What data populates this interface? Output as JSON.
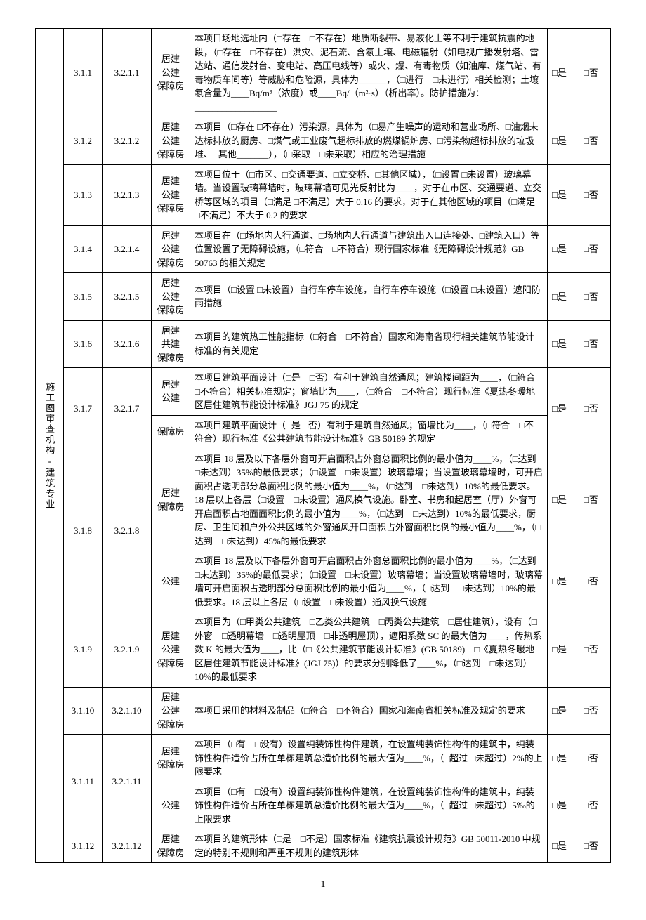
{
  "page_number": "1",
  "category_label": "施工图审查机构-建筑专业",
  "yes_label": "□是",
  "no_label": "□否",
  "type_labels": {
    "ju_gong_bao": "居建\n公建\n保障房",
    "ju_gong": "居建\n公建",
    "ju_bao": "居建\n保障房",
    "ju_gong2_bao": "居建\n共建\n保障房",
    "bao": "保障房",
    "gong": "公建"
  },
  "rows": [
    {
      "n1": "3.1.1",
      "n2": "3.2.1.1",
      "type": "ju_gong_bao",
      "desc": "本项目场地选址内（□存在　□不存在）地质断裂带、易液化土等不利于建筑抗震的地段，（□存在　□不存在）洪灾、泥石流、含氡土壤、电磁辐射（如电视广播发射塔、雷达站、通信发射台、变电站、高压电线等）或火、爆、有毒物质（如油库、煤气站、有毒物质车间等）等威胁和危险源，具体为______，（□进行　□未进行）相关检测；土壤氡含量为____Bq/m³（浓度）或____Bq/（m²·s）（析出率）。防护措施为：__________________"
    },
    {
      "n1": "3.1.2",
      "n2": "3.2.1.2",
      "type": "ju_gong_bao",
      "desc": "本项目（□存在 □不存在）污染源，具体为（□易产生噪声的运动和营业场所、□油烟未达标排放的厨房、□煤气或工业废气超标排放的燃煤锅炉房、□污染物超标排放的垃圾堆、□其他_______），（□采取　□未采取）相应的治理措施"
    },
    {
      "n1": "3.1.3",
      "n2": "3.2.1.3",
      "type": "ju_gong_bao",
      "desc": "本项目位于（□市区、□交通要道、□立交桥、□其他区域），（□设置 □未设置）玻璃幕墙。当设置玻璃幕墙时，玻璃幕墙可见光反射比为____，对于在市区、交通要道、立交桥等区域的项目（□满足 □不满足）大于 0.16 的要求，对于在其他区域的项目（□满足 □不满足）不大于 0.2 的要求"
    },
    {
      "n1": "3.1.4",
      "n2": "3.2.1.4",
      "type": "ju_gong_bao",
      "desc": "本项目在（□场地内人行通道、□场地内人行通道与建筑出入口连接处、□建筑入口）等位置设置了无障碍设施，（□符合　□不符合）现行国家标准《无障碍设计规范》GB 50763 的相关规定"
    },
    {
      "n1": "3.1.5",
      "n2": "3.2.1.5",
      "type": "ju_gong_bao",
      "desc": "本项目（□设置 □未设置）自行车停车设施，自行车停车设施（□设置 □未设置）遮阳防雨措施"
    },
    {
      "n1": "3.1.6",
      "n2": "3.2.1.6",
      "type": "ju_gong2_bao",
      "desc": "本项目的建筑热工性能指标（□符合　□不符合）国家和海南省现行相关建筑节能设计标准的有关规定"
    },
    {
      "n1": "3.1.7",
      "n2": "3.2.1.7",
      "split": true,
      "top_type": "ju_gong",
      "top_desc": "本项目建筑平面设计（□是　□否）有利于建筑自然通风；建筑楼间距为____，（□符合　□不符合）相关标准规定；窗墙比为____，（□符合　□不符合）现行标准《夏热冬暖地区居住建筑节能设计标准》JGJ 75 的规定",
      "bot_type": "bao",
      "bot_desc": "本项目建筑平面设计（□是 □否）有利于建筑自然通风；窗墙比为____，（□符合　□不符合）现行标准《公共建筑节能设计标准》GB 50189 的规定"
    },
    {
      "n1": "3.1.8",
      "n2": "3.2.1.8",
      "split_sep": true,
      "top_type": "ju_bao",
      "top_desc": "本项目 18 层及以下各层外窗可开启面积占外窗总面积比例的最小值为____%，（□达到　□未达到）35%的最低要求；（□设置　□未设置）玻璃幕墙；当设置玻璃幕墙时，可开启面积占透明部分总面积比例的最小值为____%，（□达到　□未达到）10%的最低要求。18 层以上各层（□设置　□未设置）通风换气设施。卧室、书房和起居室（厅）外窗可开启面积占地面面积比例的最小值为____%，（□达到　□未达到）10%的最低要求，厨房、卫生间和户外公共区域的外窗通风开口面积占外窗面积比例的最小值为____%，（□达到　□未达到）45%的最低要求",
      "bot_type": "gong",
      "bot_desc": "本项目 18 层及以下各层外窗可开启面积占外窗总面积比例的最小值为____%，（□达到　□未达到）35%的最低要求；（□设置　□未设置）玻璃幕墙；当设置玻璃幕墙时，玻璃幕墙可开启面积占透明部分总面积比例的最小值为____%，（□达到　□未达到）10%的最低要求。18 层以上各层（□设置　□未设置）通风换气设施"
    },
    {
      "n1": "3.1.9",
      "n2": "3.2.1.9",
      "type": "ju_gong_bao",
      "desc": "本项目为（□甲类公共建筑　□乙类公共建筑　□丙类公共建筑　□居住建筑），设有（□外窗　□透明幕墙　□透明屋顶　□非透明屋顶），遮阳系数 SC 的最大值为____，传热系数 K 的最大值为____，比（□《公共建筑节能设计标准》(GB 50189)　□《夏热冬暖地区居住建筑节能设计标准》(JGJ 75)）的要求分别降低了____%，（□达到　□未达到）10%的最低要求"
    },
    {
      "n1": "3.1.10",
      "n2": "3.2.1.10",
      "type": "ju_gong_bao",
      "desc": "本项目采用的材料及制品（□符合　□不符合）国家和海南省相关标准及规定的要求"
    },
    {
      "n1": "3.1.11",
      "n2": "3.2.1.11",
      "split_sep": true,
      "top_type": "ju_bao",
      "top_desc": "本项目（□有　□没有）设置纯装饰性构件建筑，在设置纯装饰性构件的建筑中，纯装饰性构件造价占所在单栋建筑总造价比例的最大值为____%，（□超过 □未超过）2%的上限要求",
      "bot_type": "gong",
      "bot_desc": "本项目（□有　□没有）设置纯装饰性构件建筑，在设置纯装饰性构件的建筑中，纯装饰性构件造价占所在单栋建筑总造价比例的最大值为____%，（□超过 □未超过）5‰的上限要求"
    },
    {
      "n1": "3.1.12",
      "n2": "3.2.1.12",
      "type": "ju_bao",
      "desc": "本项目的建筑形体（□是　□不是）国家标准《建筑抗震设计规范》GB 50011-2010 中规定的特别不规则和严重不规则的建筑形体"
    }
  ]
}
